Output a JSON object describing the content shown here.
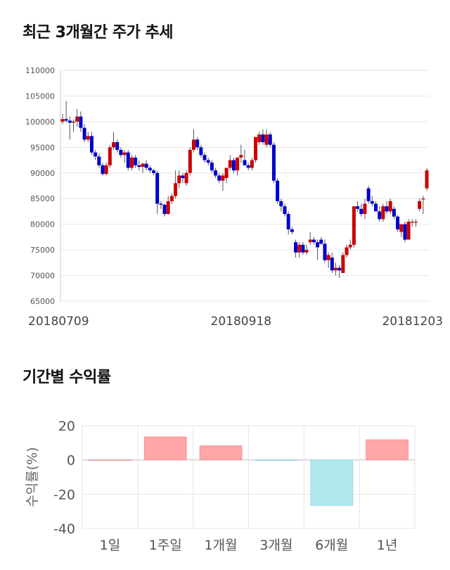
{
  "section1": {
    "title": "최근 3개월간 주가 추세"
  },
  "section2": {
    "title": "기간별 수익률"
  },
  "colors": {
    "up": "#cc0000",
    "down": "#0000cc",
    "wick": "#555555",
    "positive_bar": "#ffa6a6",
    "negative_bar": "#b0e8f0",
    "grid": "#e6e6e6"
  },
  "chart_data": [
    {
      "type": "candlestick",
      "title": "최근 3개월간 주가 추세",
      "ylim": [
        65000,
        110000
      ],
      "yticks": [
        65000,
        70000,
        75000,
        80000,
        85000,
        90000,
        95000,
        100000,
        105000,
        110000
      ],
      "x_tick_labels": [
        {
          "index": 0,
          "label": "20180709"
        },
        {
          "index": 49,
          "label": "20180918"
        },
        {
          "index": 101,
          "label": "20181203"
        }
      ],
      "candles": [
        [
          100000,
          101500,
          99500,
          100500
        ],
        [
          100500,
          104000,
          99800,
          100200
        ],
        [
          100200,
          101000,
          96500,
          99800
        ],
        [
          99800,
          100400,
          98000,
          100000
        ],
        [
          100000,
          102500,
          99000,
          101000
        ],
        [
          101000,
          102000,
          98000,
          98800
        ],
        [
          98800,
          99500,
          96000,
          96500
        ],
        [
          96500,
          98000,
          96000,
          97200
        ],
        [
          97200,
          98000,
          93500,
          94000
        ],
        [
          94000,
          94500,
          92500,
          93200
        ],
        [
          93200,
          93800,
          91000,
          91500
        ],
        [
          91500,
          92000,
          89500,
          89800
        ],
        [
          89800,
          92000,
          89500,
          91500
        ],
        [
          91500,
          95500,
          91000,
          95000
        ],
        [
          95000,
          98000,
          94500,
          96000
        ],
        [
          96000,
          96500,
          94000,
          94500
        ],
        [
          94500,
          95000,
          93000,
          93500
        ],
        [
          93500,
          94500,
          92000,
          94000
        ],
        [
          94000,
          94500,
          90500,
          91000
        ],
        [
          91000,
          93500,
          90500,
          93000
        ],
        [
          93000,
          93500,
          91000,
          91500
        ],
        [
          91500,
          92500,
          90500,
          91200
        ],
        [
          91200,
          92000,
          90000,
          91800
        ],
        [
          91800,
          92500,
          90500,
          91000
        ],
        [
          91000,
          91500,
          90000,
          90500
        ],
        [
          90500,
          90800,
          89500,
          90000
        ],
        [
          90000,
          90500,
          82000,
          84000
        ],
        [
          84000,
          84500,
          83000,
          83800
        ],
        [
          83800,
          84000,
          81500,
          82000
        ],
        [
          82000,
          85500,
          81800,
          84500
        ],
        [
          84500,
          86000,
          84000,
          85500
        ],
        [
          85500,
          90500,
          85000,
          88000
        ],
        [
          88000,
          90500,
          87000,
          89500
        ],
        [
          89500,
          90000,
          88000,
          89000
        ],
        [
          88000,
          90500,
          87500,
          90000
        ],
        [
          90000,
          95000,
          89500,
          94500
        ],
        [
          94500,
          98500,
          94000,
          96500
        ],
        [
          96500,
          97000,
          94500,
          95000
        ],
        [
          95000,
          95500,
          93000,
          93500
        ],
        [
          93500,
          94000,
          92000,
          92500
        ],
        [
          92500,
          93000,
          91500,
          92000
        ],
        [
          92000,
          92500,
          90000,
          90500
        ],
        [
          90500,
          91000,
          89000,
          89500
        ],
        [
          89500,
          90000,
          88000,
          88500
        ],
        [
          88500,
          90000,
          86500,
          89500
        ],
        [
          89000,
          91000,
          88000,
          91000
        ],
        [
          91000,
          93500,
          90500,
          92500
        ],
        [
          92500,
          93000,
          90000,
          90500
        ],
        [
          90500,
          93000,
          89500,
          93000
        ],
        [
          93000,
          95500,
          92000,
          93500
        ],
        [
          92500,
          94500,
          91500,
          91500
        ],
        [
          91500,
          92000,
          90500,
          91000
        ],
        [
          91000,
          93000,
          90500,
          92500
        ],
        [
          92500,
          97000,
          92000,
          97000
        ],
        [
          96000,
          98000,
          95500,
          97500
        ],
        [
          97500,
          98500,
          95500,
          96000
        ],
        [
          95500,
          98500,
          95000,
          97500
        ],
        [
          97500,
          98000,
          95000,
          95500
        ],
        [
          95500,
          96000,
          88000,
          88500
        ],
        [
          88500,
          89000,
          84000,
          84500
        ],
        [
          84500,
          85000,
          82500,
          83500
        ],
        [
          83500,
          84000,
          81500,
          82000
        ],
        [
          82000,
          82500,
          78000,
          79000
        ],
        [
          79000,
          79500,
          78000,
          78500
        ],
        [
          76500,
          77000,
          73500,
          74500
        ],
        [
          74500,
          76500,
          73500,
          76000
        ],
        [
          76000,
          76500,
          74000,
          74500
        ],
        [
          74500,
          76000,
          74000,
          75000
        ],
        [
          76500,
          78500,
          76000,
          77000
        ],
        [
          77000,
          77500,
          76000,
          76500
        ],
        [
          76500,
          77000,
          73000,
          75500
        ],
        [
          77000,
          77500,
          76000,
          76200
        ],
        [
          76200,
          77000,
          72500,
          73000
        ],
        [
          73000,
          74500,
          71500,
          74000
        ],
        [
          73500,
          74500,
          70500,
          71000
        ],
        [
          71000,
          72500,
          70000,
          71500
        ],
        [
          71500,
          72000,
          69500,
          71000
        ],
        [
          70500,
          74500,
          70500,
          74000
        ],
        [
          74000,
          76000,
          73500,
          75500
        ],
        [
          75500,
          77000,
          75000,
          76000
        ],
        [
          76000,
          83500,
          75500,
          83500
        ],
        [
          83500,
          84500,
          82500,
          83000
        ],
        [
          83000,
          84000,
          81500,
          82000
        ],
        [
          82000,
          85000,
          81000,
          84000
        ],
        [
          87000,
          87500,
          84000,
          84500
        ],
        [
          84500,
          85500,
          83500,
          84000
        ],
        [
          84000,
          84500,
          82500,
          82500
        ],
        [
          82500,
          83500,
          80500,
          81000
        ],
        [
          81000,
          84000,
          80500,
          83500
        ],
        [
          83500,
          84500,
          82000,
          82500
        ],
        [
          82500,
          85000,
          82000,
          84500
        ],
        [
          83000,
          83500,
          81000,
          81500
        ],
        [
          81500,
          81800,
          78500,
          79000
        ],
        [
          78500,
          80000,
          77500,
          80000
        ],
        [
          80000,
          80500,
          76500,
          77000
        ],
        [
          77000,
          81000,
          77000,
          80500
        ],
        [
          80500,
          81000,
          79500,
          80500
        ],
        [
          80500,
          81000,
          79500,
          80500
        ],
        [
          83000,
          85000,
          82500,
          84500
        ],
        [
          85000,
          85500,
          82000,
          85000
        ],
        [
          87000,
          91000,
          86500,
          90500
        ]
      ]
    },
    {
      "type": "bar",
      "title": "기간별 수익률",
      "ylabel": "수익률(%)",
      "ylim": [
        -40,
        20
      ],
      "yticks": [
        -40,
        -20,
        0,
        20
      ],
      "categories": [
        "1일",
        "1주일",
        "1개월",
        "3개월",
        "6개월",
        "1년"
      ],
      "values": [
        0,
        13.5,
        8.3,
        -0.3,
        -26.5,
        11.8
      ]
    }
  ]
}
